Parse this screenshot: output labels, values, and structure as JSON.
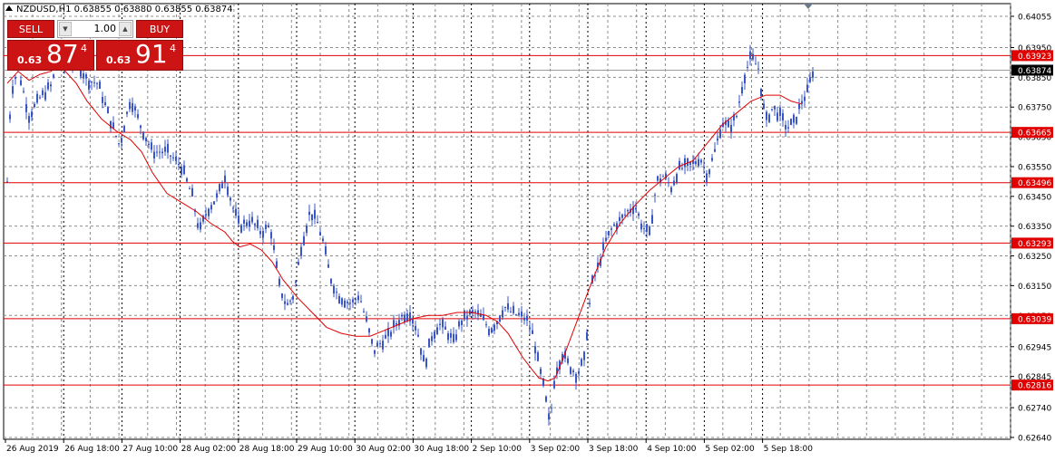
{
  "header": {
    "text": "NZDUSD,H1  0.63855 0.63880 0.63855 0.63874"
  },
  "trade_panel": {
    "sell_label": "SELL",
    "buy_label": "BUY",
    "lot_value": "1.00",
    "sell_price": {
      "prefix": "0.63",
      "big": "87",
      "super": "4"
    },
    "buy_price": {
      "prefix": "0.63",
      "big": "91",
      "super": "4"
    }
  },
  "colors": {
    "candles": "#3a55c8",
    "moving_average": "#e00000",
    "levels": "#e00000",
    "level_label_bg": "#e00000",
    "current_price_bg": "#000000",
    "grid": "#8c8c8c"
  },
  "chart_data": {
    "type": "candlestick",
    "symbol": "NZDUSD",
    "timeframe": "H1",
    "ohlc_header": {
      "open": 0.63855,
      "high": 0.6388,
      "low": 0.63855,
      "close": 0.63874
    },
    "x_tick_labels": [
      "26 Aug 2019",
      "26 Aug 18:00",
      "27 Aug 10:00",
      "28 Aug 02:00",
      "28 Aug 18:00",
      "29 Aug 10:00",
      "30 Aug 02:00",
      "30 Aug 18:00",
      "2 Sep 10:00",
      "3 Sep 02:00",
      "3 Sep 18:00",
      "4 Sep 10:00",
      "5 Sep 02:00",
      "5 Sep 18:00"
    ],
    "y_tick_labels": [
      "0.64055",
      "0.63950",
      "0.63850",
      "0.63750",
      "0.63650",
      "0.63550",
      "0.63450",
      "0.63350",
      "0.63250",
      "0.63150",
      "0.63050",
      "0.62945",
      "0.62845",
      "0.62740",
      "0.62640"
    ],
    "ylim": [
      0.6264,
      0.64055
    ],
    "grid": true,
    "current_price": 0.63874,
    "horizontal_levels": [
      0.63923,
      0.63665,
      0.63496,
      0.63293,
      0.63039,
      0.62816
    ],
    "level_labels": [
      "0.63923",
      "0.63665",
      "0.63496",
      "0.63293",
      "0.63039",
      "0.62816"
    ],
    "current_price_label": "0.63874",
    "moving_average": [
      {
        "x": 0,
        "y": 0.6383
      },
      {
        "x": 12,
        "y": 0.6387
      },
      {
        "x": 24,
        "y": 0.6384
      },
      {
        "x": 36,
        "y": 0.6386
      },
      {
        "x": 48,
        "y": 0.6387
      },
      {
        "x": 56,
        "y": 0.6389
      },
      {
        "x": 64,
        "y": 0.6387
      },
      {
        "x": 76,
        "y": 0.6383
      },
      {
        "x": 88,
        "y": 0.6377
      },
      {
        "x": 104,
        "y": 0.6371
      },
      {
        "x": 120,
        "y": 0.6367
      },
      {
        "x": 136,
        "y": 0.6364
      },
      {
        "x": 148,
        "y": 0.636
      },
      {
        "x": 160,
        "y": 0.6353
      },
      {
        "x": 176,
        "y": 0.6346
      },
      {
        "x": 192,
        "y": 0.6343
      },
      {
        "x": 208,
        "y": 0.634
      },
      {
        "x": 224,
        "y": 0.6336
      },
      {
        "x": 240,
        "y": 0.6333
      },
      {
        "x": 248,
        "y": 0.633
      },
      {
        "x": 256,
        "y": 0.6328
      },
      {
        "x": 268,
        "y": 0.6329
      },
      {
        "x": 280,
        "y": 0.6327
      },
      {
        "x": 292,
        "y": 0.6323
      },
      {
        "x": 304,
        "y": 0.6317
      },
      {
        "x": 320,
        "y": 0.6311
      },
      {
        "x": 336,
        "y": 0.6306
      },
      {
        "x": 352,
        "y": 0.6301
      },
      {
        "x": 368,
        "y": 0.6299
      },
      {
        "x": 384,
        "y": 0.6298
      },
      {
        "x": 400,
        "y": 0.6298
      },
      {
        "x": 416,
        "y": 0.63
      },
      {
        "x": 432,
        "y": 0.6302
      },
      {
        "x": 448,
        "y": 0.6304
      },
      {
        "x": 464,
        "y": 0.6305
      },
      {
        "x": 480,
        "y": 0.6305
      },
      {
        "x": 496,
        "y": 0.6306
      },
      {
        "x": 512,
        "y": 0.6306
      },
      {
        "x": 528,
        "y": 0.6305
      },
      {
        "x": 540,
        "y": 0.6303
      },
      {
        "x": 552,
        "y": 0.6299
      },
      {
        "x": 560,
        "y": 0.6295
      },
      {
        "x": 568,
        "y": 0.6291
      },
      {
        "x": 578,
        "y": 0.6287
      },
      {
        "x": 586,
        "y": 0.6284
      },
      {
        "x": 596,
        "y": 0.6283
      },
      {
        "x": 604,
        "y": 0.6284
      },
      {
        "x": 612,
        "y": 0.629
      },
      {
        "x": 628,
        "y": 0.6303
      },
      {
        "x": 644,
        "y": 0.6316
      },
      {
        "x": 660,
        "y": 0.6328
      },
      {
        "x": 676,
        "y": 0.6336
      },
      {
        "x": 692,
        "y": 0.6342
      },
      {
        "x": 708,
        "y": 0.6347
      },
      {
        "x": 724,
        "y": 0.6351
      },
      {
        "x": 740,
        "y": 0.6355
      },
      {
        "x": 756,
        "y": 0.6357
      },
      {
        "x": 772,
        "y": 0.6363
      },
      {
        "x": 788,
        "y": 0.6369
      },
      {
        "x": 804,
        "y": 0.6373
      },
      {
        "x": 820,
        "y": 0.6377
      },
      {
        "x": 836,
        "y": 0.6379
      },
      {
        "x": 852,
        "y": 0.6379
      },
      {
        "x": 864,
        "y": 0.6377
      },
      {
        "x": 876,
        "y": 0.6376
      }
    ],
    "close_path": [
      {
        "x": 0,
        "y": 0.635
      },
      {
        "x": 4,
        "y": 0.638
      },
      {
        "x": 12,
        "y": 0.6388
      },
      {
        "x": 24,
        "y": 0.6372
      },
      {
        "x": 36,
        "y": 0.6378
      },
      {
        "x": 48,
        "y": 0.6382
      },
      {
        "x": 56,
        "y": 0.639
      },
      {
        "x": 64,
        "y": 0.6388
      },
      {
        "x": 76,
        "y": 0.6391
      },
      {
        "x": 88,
        "y": 0.6384
      },
      {
        "x": 100,
        "y": 0.6383
      },
      {
        "x": 112,
        "y": 0.6372
      },
      {
        "x": 124,
        "y": 0.6362
      },
      {
        "x": 136,
        "y": 0.6378
      },
      {
        "x": 148,
        "y": 0.6368
      },
      {
        "x": 160,
        "y": 0.636
      },
      {
        "x": 176,
        "y": 0.636
      },
      {
        "x": 192,
        "y": 0.6355
      },
      {
        "x": 204,
        "y": 0.6345
      },
      {
        "x": 212,
        "y": 0.6333
      },
      {
        "x": 220,
        "y": 0.634
      },
      {
        "x": 232,
        "y": 0.6345
      },
      {
        "x": 240,
        "y": 0.6352
      },
      {
        "x": 248,
        "y": 0.6342
      },
      {
        "x": 256,
        "y": 0.6335
      },
      {
        "x": 268,
        "y": 0.6337
      },
      {
        "x": 280,
        "y": 0.6333
      },
      {
        "x": 290,
        "y": 0.6335
      },
      {
        "x": 300,
        "y": 0.6315
      },
      {
        "x": 308,
        "y": 0.6308
      },
      {
        "x": 316,
        "y": 0.6312
      },
      {
        "x": 324,
        "y": 0.6328
      },
      {
        "x": 334,
        "y": 0.634
      },
      {
        "x": 342,
        "y": 0.6336
      },
      {
        "x": 348,
        "y": 0.633
      },
      {
        "x": 356,
        "y": 0.6318
      },
      {
        "x": 364,
        "y": 0.6312
      },
      {
        "x": 372,
        "y": 0.631
      },
      {
        "x": 380,
        "y": 0.6309
      },
      {
        "x": 388,
        "y": 0.6312
      },
      {
        "x": 396,
        "y": 0.6303
      },
      {
        "x": 404,
        "y": 0.6293
      },
      {
        "x": 412,
        "y": 0.6296
      },
      {
        "x": 420,
        "y": 0.6298
      },
      {
        "x": 428,
        "y": 0.6302
      },
      {
        "x": 436,
        "y": 0.6305
      },
      {
        "x": 444,
        "y": 0.6306
      },
      {
        "x": 452,
        "y": 0.63
      },
      {
        "x": 460,
        "y": 0.6288
      },
      {
        "x": 468,
        "y": 0.6298
      },
      {
        "x": 476,
        "y": 0.6302
      },
      {
        "x": 484,
        "y": 0.63
      },
      {
        "x": 492,
        "y": 0.6296
      },
      {
        "x": 500,
        "y": 0.6303
      },
      {
        "x": 508,
        "y": 0.6305
      },
      {
        "x": 516,
        "y": 0.6306
      },
      {
        "x": 524,
        "y": 0.6304
      },
      {
        "x": 532,
        "y": 0.63
      },
      {
        "x": 540,
        "y": 0.6303
      },
      {
        "x": 548,
        "y": 0.6308
      },
      {
        "x": 556,
        "y": 0.6306
      },
      {
        "x": 564,
        "y": 0.6305
      },
      {
        "x": 572,
        "y": 0.6304
      },
      {
        "x": 580,
        "y": 0.6298
      },
      {
        "x": 586,
        "y": 0.6288
      },
      {
        "x": 592,
        "y": 0.628
      },
      {
        "x": 598,
        "y": 0.6268
      },
      {
        "x": 604,
        "y": 0.6286
      },
      {
        "x": 612,
        "y": 0.6292
      },
      {
        "x": 620,
        "y": 0.6288
      },
      {
        "x": 628,
        "y": 0.6285
      },
      {
        "x": 636,
        "y": 0.629
      },
      {
        "x": 644,
        "y": 0.6315
      },
      {
        "x": 652,
        "y": 0.6322
      },
      {
        "x": 660,
        "y": 0.633
      },
      {
        "x": 668,
        "y": 0.6335
      },
      {
        "x": 676,
        "y": 0.6337
      },
      {
        "x": 684,
        "y": 0.634
      },
      {
        "x": 692,
        "y": 0.6342
      },
      {
        "x": 700,
        "y": 0.6335
      },
      {
        "x": 708,
        "y": 0.6332
      },
      {
        "x": 716,
        "y": 0.635
      },
      {
        "x": 724,
        "y": 0.6352
      },
      {
        "x": 732,
        "y": 0.6348
      },
      {
        "x": 740,
        "y": 0.6354
      },
      {
        "x": 748,
        "y": 0.6355
      },
      {
        "x": 756,
        "y": 0.6356
      },
      {
        "x": 764,
        "y": 0.6358
      },
      {
        "x": 772,
        "y": 0.6352
      },
      {
        "x": 780,
        "y": 0.636
      },
      {
        "x": 788,
        "y": 0.637
      },
      {
        "x": 796,
        "y": 0.6368
      },
      {
        "x": 804,
        "y": 0.6372
      },
      {
        "x": 812,
        "y": 0.6385
      },
      {
        "x": 820,
        "y": 0.6392
      },
      {
        "x": 828,
        "y": 0.6388
      },
      {
        "x": 836,
        "y": 0.637
      },
      {
        "x": 844,
        "y": 0.6375
      },
      {
        "x": 852,
        "y": 0.6372
      },
      {
        "x": 860,
        "y": 0.6368
      },
      {
        "x": 868,
        "y": 0.637
      },
      {
        "x": 876,
        "y": 0.6377
      },
      {
        "x": 882,
        "y": 0.638
      },
      {
        "x": 888,
        "y": 0.6387
      }
    ]
  }
}
